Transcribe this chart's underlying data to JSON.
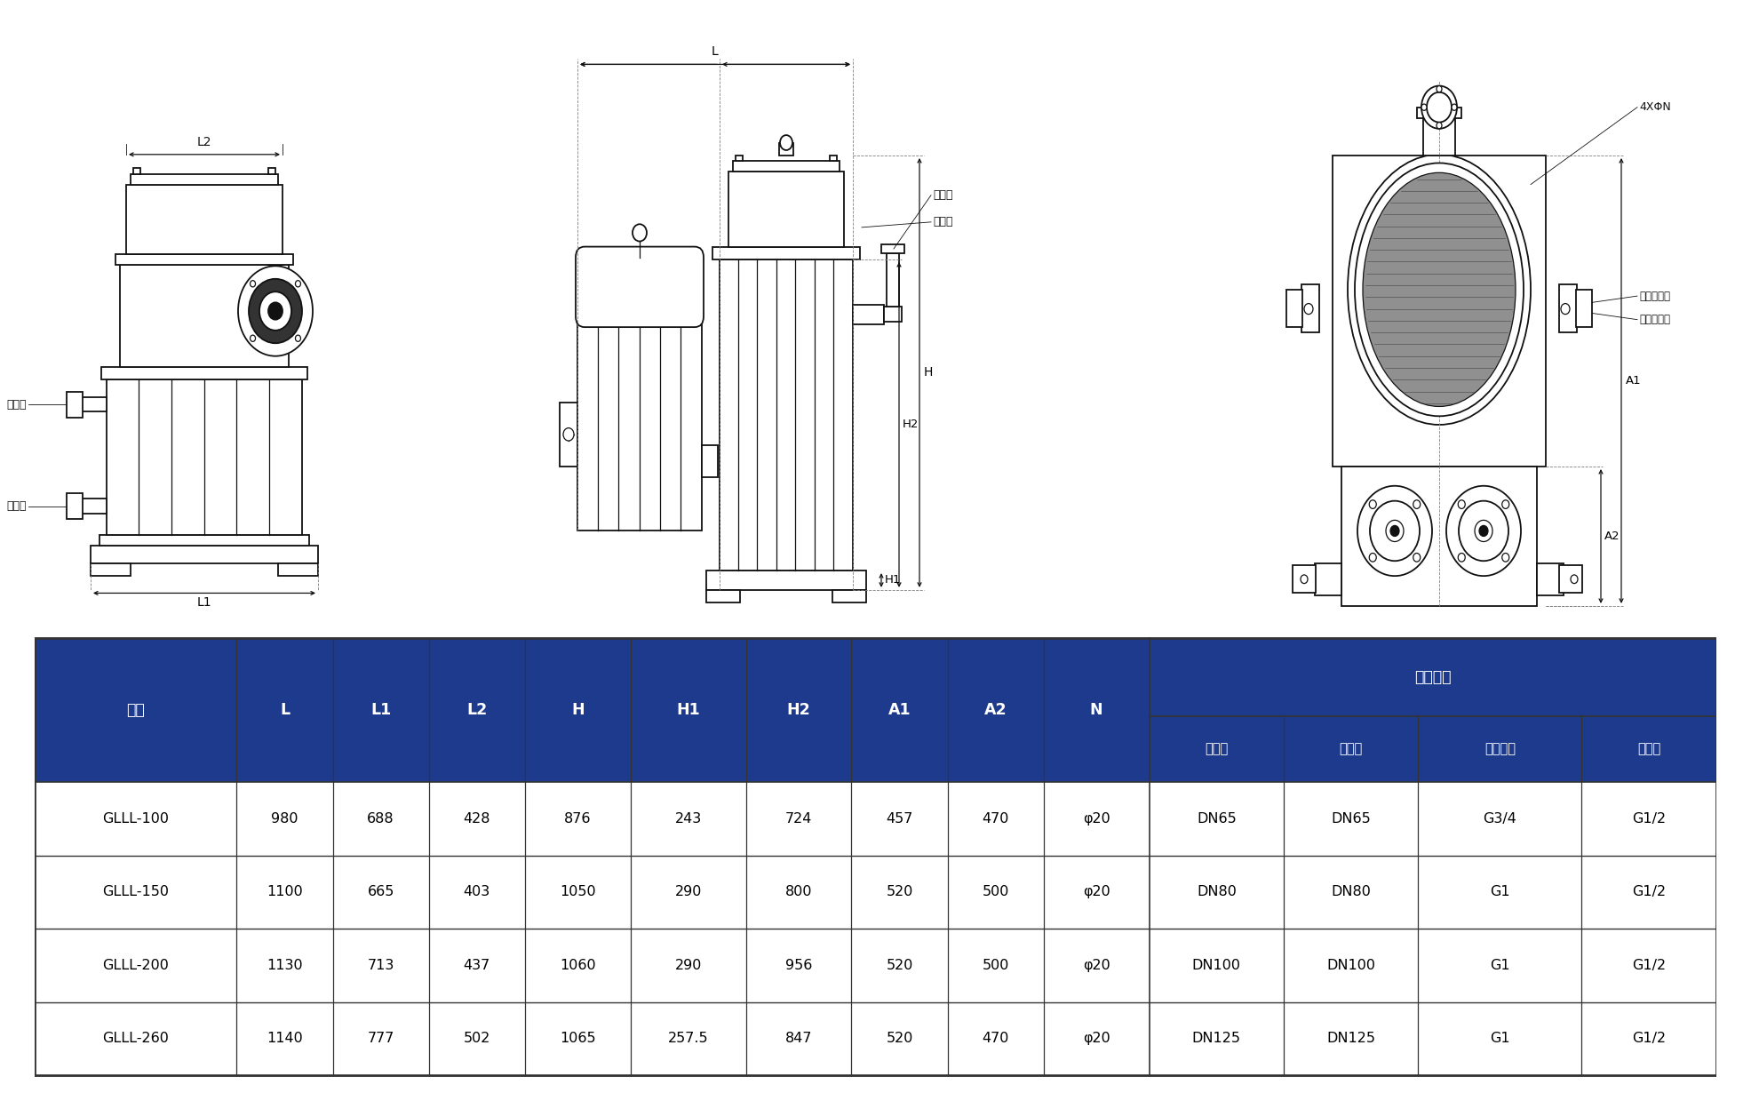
{
  "header_bg": "#1e3a8c",
  "header_fg": "#ffffff",
  "border_color": "#333333",
  "col1_header": "型號",
  "col_headers": [
    "L",
    "L1",
    "L2",
    "H",
    "H1",
    "H2",
    "A1",
    "A2",
    "N"
  ],
  "group_header": "接口口徑",
  "sub_headers": [
    "進氣口",
    "排氣口",
    "冷卻水口",
    "排液口"
  ],
  "rows": [
    [
      "GLLL-100",
      "980",
      "688",
      "428",
      "876",
      "243",
      "724",
      "457",
      "470",
      "φ20",
      "DN65",
      "DN65",
      "G3/4",
      "G1/2"
    ],
    [
      "GLLL-150",
      "1100",
      "665",
      "403",
      "1050",
      "290",
      "800",
      "520",
      "500",
      "φ20",
      "DN80",
      "DN80",
      "G1",
      "G1/2"
    ],
    [
      "GLLL-200",
      "1130",
      "713",
      "437",
      "1060",
      "290",
      "956",
      "520",
      "500",
      "φ20",
      "DN100",
      "DN100",
      "G1",
      "G1/2"
    ],
    [
      "GLLL-260",
      "1140",
      "777",
      "502",
      "1065",
      "257.5",
      "847",
      "520",
      "470",
      "φ20",
      "DN125",
      "DN125",
      "G1",
      "G1/2"
    ]
  ],
  "col_widths": [
    10.5,
    5.0,
    5.0,
    5.0,
    5.5,
    6.0,
    5.5,
    5.0,
    5.0,
    5.5,
    7.0,
    7.0,
    8.5,
    7.0
  ],
  "lv_label_L2": "L2",
  "lv_label_L1": "L1",
  "lv_label_paiqikou": "排氣口",
  "lv_label_paiyekou": "排液口",
  "mv_label_L": "L",
  "mv_label_H": "H",
  "mv_label_H1": "H1",
  "mv_label_H2": "H2",
  "mv_label_jinqikou": "進氣口",
  "mv_label_zhuyoukong": "注油孔",
  "rv_label_4xphin": "4XΦN",
  "rv_label_A1": "A1",
  "rv_label_A2": "A2",
  "rv_label_lqsck": "冷卻水出口",
  "rv_label_lqsjk": "冷卻水進口"
}
